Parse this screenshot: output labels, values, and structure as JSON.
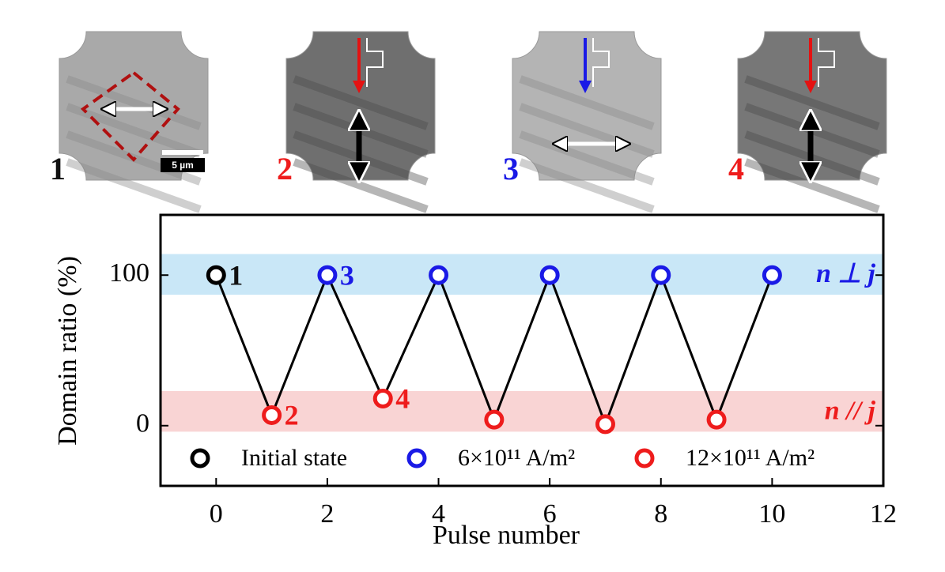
{
  "chart_data": {
    "type": "scatter",
    "panels": [
      {
        "label": "1",
        "color": "#111111"
      },
      {
        "label": "2",
        "color": "#ee1c1c"
      },
      {
        "label": "3",
        "color": "#1a1ae6"
      },
      {
        "label": "4",
        "color": "#ee1c1c"
      }
    ],
    "scale_bar": "5 µm",
    "xlabel": "Pulse number",
    "ylabel": "Domain ratio (%)",
    "xlim": [
      -1,
      12
    ],
    "ylim": [
      -40,
      140
    ],
    "xticks": [
      0,
      2,
      4,
      6,
      8,
      10,
      12
    ],
    "yticks": [
      0,
      100
    ],
    "bands": [
      {
        "range": [
          87,
          114
        ],
        "color": "#bfe3f6",
        "label": "n ⊥ j",
        "label_color": "#1a1ae6"
      },
      {
        "range": [
          -4,
          23
        ],
        "color": "#f8cccc",
        "label": "n // j",
        "label_color": "#ee1c1c"
      }
    ],
    "series": [
      {
        "name": "Initial state",
        "color": "#000000",
        "x": [
          0
        ],
        "values": [
          100
        ]
      },
      {
        "name": "6×10¹¹ A/m²",
        "color": "#1a1ae6",
        "x": [
          2,
          4,
          6,
          8,
          10
        ],
        "values": [
          100,
          100,
          100,
          100,
          100
        ]
      },
      {
        "name": "12×10¹¹ A/m²",
        "color": "#ee1c1c",
        "x": [
          1,
          3,
          5,
          7,
          9
        ],
        "values": [
          7,
          18,
          4,
          1,
          4
        ]
      }
    ],
    "line_color": "#000000",
    "annotations": [
      {
        "text": "1",
        "x": 0,
        "color": "#111111"
      },
      {
        "text": "2",
        "x": 1,
        "color": "#ee1c1c"
      },
      {
        "text": "3",
        "x": 2,
        "color": "#1a1ae6"
      },
      {
        "text": "4",
        "x": 3,
        "color": "#ee1c1c"
      }
    ]
  }
}
